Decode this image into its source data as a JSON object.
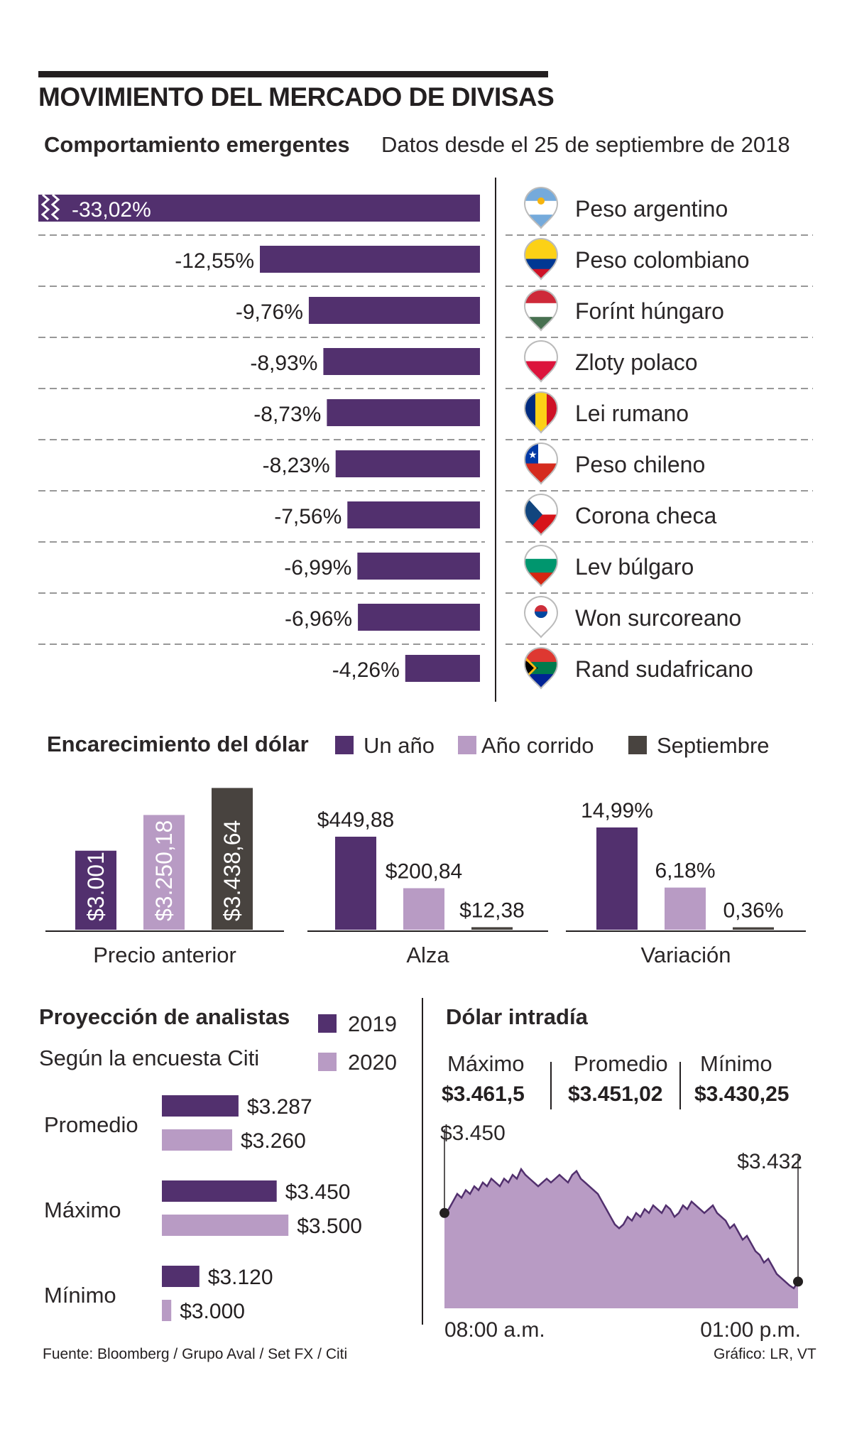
{
  "header": {
    "title": "MOVIMIENTO DEL MERCADO DE DIVISAS",
    "subtitle": "Comportamiento emergentes",
    "note": "Datos desde el 25 de septiembre de 2018"
  },
  "colors": {
    "un_anio": "#52306e",
    "anio_corrido": "#b89bc4",
    "septiembre": "#48433f",
    "area_fill": "#b89bc4",
    "area_line": "#52306e"
  },
  "chart_data": [
    {
      "type": "bar",
      "title": "Comportamiento emergentes",
      "orientation": "horizontal",
      "categories": [
        "Peso argentino",
        "Peso colombiano",
        "Forínt húngaro",
        "Zloty polaco",
        "Lei rumano",
        "Peso chileno",
        "Corona checa",
        "Lev búlgaro",
        "Won surcoreano",
        "Rand sudafricano"
      ],
      "values": [
        -33.02,
        -12.55,
        -9.76,
        -8.93,
        -8.73,
        -8.23,
        -7.56,
        -6.99,
        -6.96,
        -4.26
      ],
      "labels": [
        "-33,02%",
        "-12,55%",
        "-9,76%",
        "-8,93%",
        "-8,73%",
        "-8,23%",
        "-7,56%",
        "-6,99%",
        "-6,96%",
        "-4,26%"
      ],
      "axis_break": true,
      "icons": [
        "argentina-flag-icon",
        "colombia-flag-icon",
        "hungary-flag-icon",
        "poland-flag-icon",
        "romania-flag-icon",
        "chile-flag-icon",
        "czech-flag-icon",
        "bulgaria-flag-icon",
        "south-korea-flag-icon",
        "south-africa-flag-icon"
      ]
    },
    {
      "type": "bar",
      "title": "Encarecimiento del dólar",
      "legend": [
        "Un año",
        "Año corrido",
        "Septiembre"
      ],
      "groups": [
        {
          "name": "Precio anterior",
          "values": [
            3001.14,
            3250.18,
            3438.64
          ],
          "labels": [
            "$3.001,14",
            "$3.250,18",
            "$3.438,64"
          ]
        },
        {
          "name": "Alza",
          "values": [
            449.88,
            200.84,
            12.38
          ],
          "labels": [
            "$449,88",
            "$200,84",
            "$12,38"
          ]
        },
        {
          "name": "Variación",
          "values": [
            14.99,
            6.18,
            0.36
          ],
          "labels": [
            "14,99%",
            "6,18%",
            "0,36%"
          ]
        }
      ]
    },
    {
      "type": "bar",
      "orientation": "horizontal",
      "title": "Proyección de analistas",
      "subtitle": "Según la encuesta Citi",
      "categories": [
        "Promedio",
        "Máximo",
        "Mínimo"
      ],
      "series": [
        {
          "name": "2019",
          "values": [
            3287,
            3450,
            3120
          ],
          "labels": [
            "$3.287",
            "$3.450",
            "$3.120"
          ]
        },
        {
          "name": "2020",
          "values": [
            3260,
            3500,
            3000
          ],
          "labels": [
            "$3.260",
            "$3.500",
            "$3.000"
          ]
        }
      ]
    },
    {
      "type": "area",
      "title": "Dólar intradía",
      "stats": [
        {
          "label": "Máximo",
          "value": "$3.461,5"
        },
        {
          "label": "Promedio",
          "value": "$3.451,02"
        },
        {
          "label": "Mínimo",
          "value": "$3.430,25"
        }
      ],
      "start_label": "$3.450",
      "end_label": "$3.432",
      "x_labels": [
        "08:00 a.m.",
        "01:00 p.m."
      ],
      "ylim": [
        3425,
        3463
      ],
      "values": [
        3450,
        3451,
        3453,
        3455,
        3454,
        3456,
        3455,
        3457,
        3456,
        3458,
        3457,
        3459,
        3458,
        3457,
        3459,
        3458,
        3460,
        3459,
        3461.5,
        3460,
        3459,
        3458,
        3457,
        3458,
        3459,
        3458,
        3459,
        3460,
        3459,
        3458,
        3460,
        3461,
        3459,
        3458,
        3457,
        3456,
        3455,
        3453,
        3451,
        3449,
        3447,
        3446,
        3447,
        3449,
        3448,
        3450,
        3449,
        3451,
        3450,
        3452,
        3451,
        3450,
        3452,
        3451,
        3449,
        3450,
        3452,
        3451,
        3453,
        3452,
        3451,
        3450,
        3451,
        3452,
        3450,
        3449,
        3448,
        3446,
        3447,
        3445,
        3443,
        3444,
        3442,
        3440,
        3439,
        3437,
        3438,
        3436,
        3434,
        3433,
        3432,
        3431,
        3430.25,
        3432
      ]
    }
  ],
  "dolar": {
    "title": "Encarecimiento del dólar",
    "legend": [
      "Un año",
      "Año corrido",
      "Septiembre"
    ]
  },
  "proj": {
    "title": "Proyección de analistas",
    "subtitle": "Según la encuesta Citi",
    "legend": [
      "2019",
      "2020"
    ]
  },
  "intraday": {
    "title": "Dólar intradía"
  },
  "footer": {
    "source": "Fuente: Bloomberg / Grupo Aval / Set FX / Citi",
    "credit": "Gráfico: LR, VT"
  }
}
